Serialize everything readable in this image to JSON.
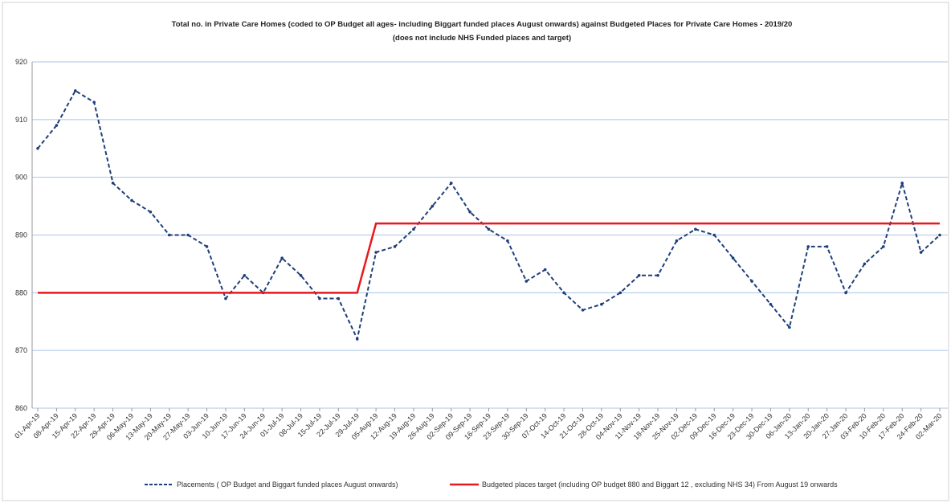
{
  "chart_data": {
    "type": "line",
    "title": "Total no. in Private Care Homes (coded to OP Budget all ages- including Biggart funded places August onwards) against Budgeted Places for Private Care Homes - 2019/20",
    "subtitle": "(does not include NHS Funded places and target)",
    "categories": [
      "01-Apr-19",
      "08-Apr-19",
      "15-Apr-19",
      "22-Apr-19",
      "29-Apr-19",
      "06-May-19",
      "13-May-19",
      "20-May-19",
      "27-May-19",
      "03-Jun-19",
      "10-Jun-19",
      "17-Jun-19",
      "24-Jun-19",
      "01-Jul-19",
      "08-Jul-19",
      "15-Jul-19",
      "22-Jul-19",
      "29-Jul-19",
      "05-Aug-19",
      "12-Aug-19",
      "19-Aug-19",
      "26-Aug-19",
      "02-Sep-19",
      "09-Sep-19",
      "16-Sep-19",
      "23-Sep-19",
      "30-Sep-19",
      "07-Oct-19",
      "14-Oct-19",
      "21-Oct-19",
      "28-Oct-19",
      "04-Nov-19",
      "11-Nov-19",
      "18-Nov-19",
      "25-Nov-19",
      "02-Dec-19",
      "09-Dec-19",
      "16-Dec-19",
      "23-Dec-19",
      "30-Dec-19",
      "06-Jan-20",
      "13-Jan-20",
      "20-Jan-20",
      "27-Jan-20",
      "03-Feb-20",
      "10-Feb-20",
      "17-Feb-20",
      "24-Feb-20",
      "02-Mar-20"
    ],
    "series": [
      {
        "name": "Placements ( OP Budget and Biggart funded places August onwards)",
        "color": "#1f3f7a",
        "dashed": true,
        "markers": true,
        "values": [
          905,
          909,
          915,
          913,
          899,
          896,
          894,
          890,
          890,
          888,
          879,
          883,
          880,
          886,
          883,
          879,
          879,
          872,
          887,
          888,
          891,
          895,
          899,
          894,
          891,
          889,
          882,
          884,
          880,
          877,
          878,
          880,
          883,
          883,
          889,
          891,
          890,
          886,
          882,
          878,
          874,
          888,
          888,
          880,
          885,
          888,
          899,
          887,
          890
        ]
      },
      {
        "name": "Budgeted places target  (including OP budget 880 and  Biggart 12 , excluding NHS 34) From August 19 onwards",
        "color": "#e8191e",
        "dashed": false,
        "markers": false,
        "values": [
          880,
          880,
          880,
          880,
          880,
          880,
          880,
          880,
          880,
          880,
          880,
          880,
          880,
          880,
          880,
          880,
          880,
          880,
          892,
          892,
          892,
          892,
          892,
          892,
          892,
          892,
          892,
          892,
          892,
          892,
          892,
          892,
          892,
          892,
          892,
          892,
          892,
          892,
          892,
          892,
          892,
          892,
          892,
          892,
          892,
          892,
          892,
          892,
          892
        ]
      }
    ],
    "ylim": [
      860,
      920
    ],
    "yticks": [
      860,
      870,
      880,
      890,
      900,
      910,
      920
    ],
    "grid": true
  }
}
